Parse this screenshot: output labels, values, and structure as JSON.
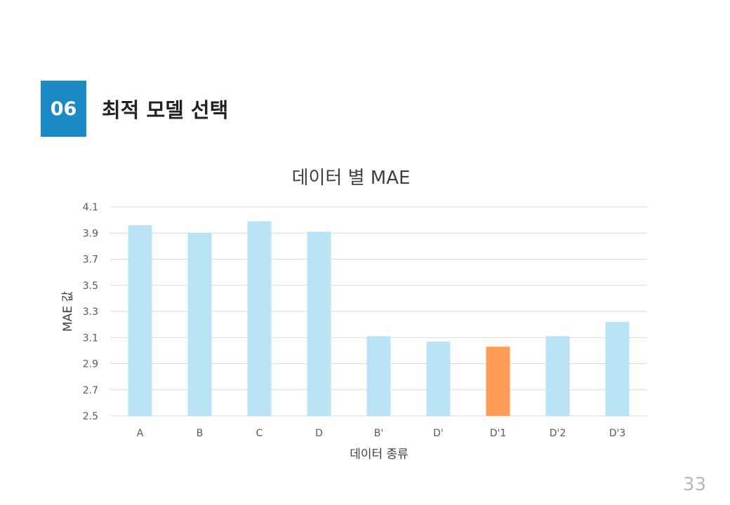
{
  "header": {
    "section_number": "06",
    "section_title": "최적 모델 선택"
  },
  "page_number": "33",
  "colors": {
    "accent": "#1c8bc5",
    "bar_default": "#bae4f5",
    "bar_highlight": "#ff9c54",
    "grid": "#d9d9d9",
    "text": "#595959"
  },
  "chart_data": {
    "type": "bar",
    "title": "데이터 별 MAE",
    "xlabel": "데이터 종류",
    "ylabel": "MAE 값",
    "categories": [
      "A",
      "B",
      "C",
      "D",
      "B'",
      "D'",
      "D'1",
      "D'2",
      "D'3"
    ],
    "values": [
      3.96,
      3.9,
      3.99,
      3.91,
      3.11,
      3.07,
      3.03,
      3.11,
      3.22
    ],
    "highlight_index": 6,
    "ylim": [
      2.5,
      4.1
    ],
    "yticks": [
      "2.5",
      "2.7",
      "2.9",
      "3.1",
      "3.3",
      "3.5",
      "3.7",
      "3.9",
      "4.1"
    ],
    "grid": true
  }
}
